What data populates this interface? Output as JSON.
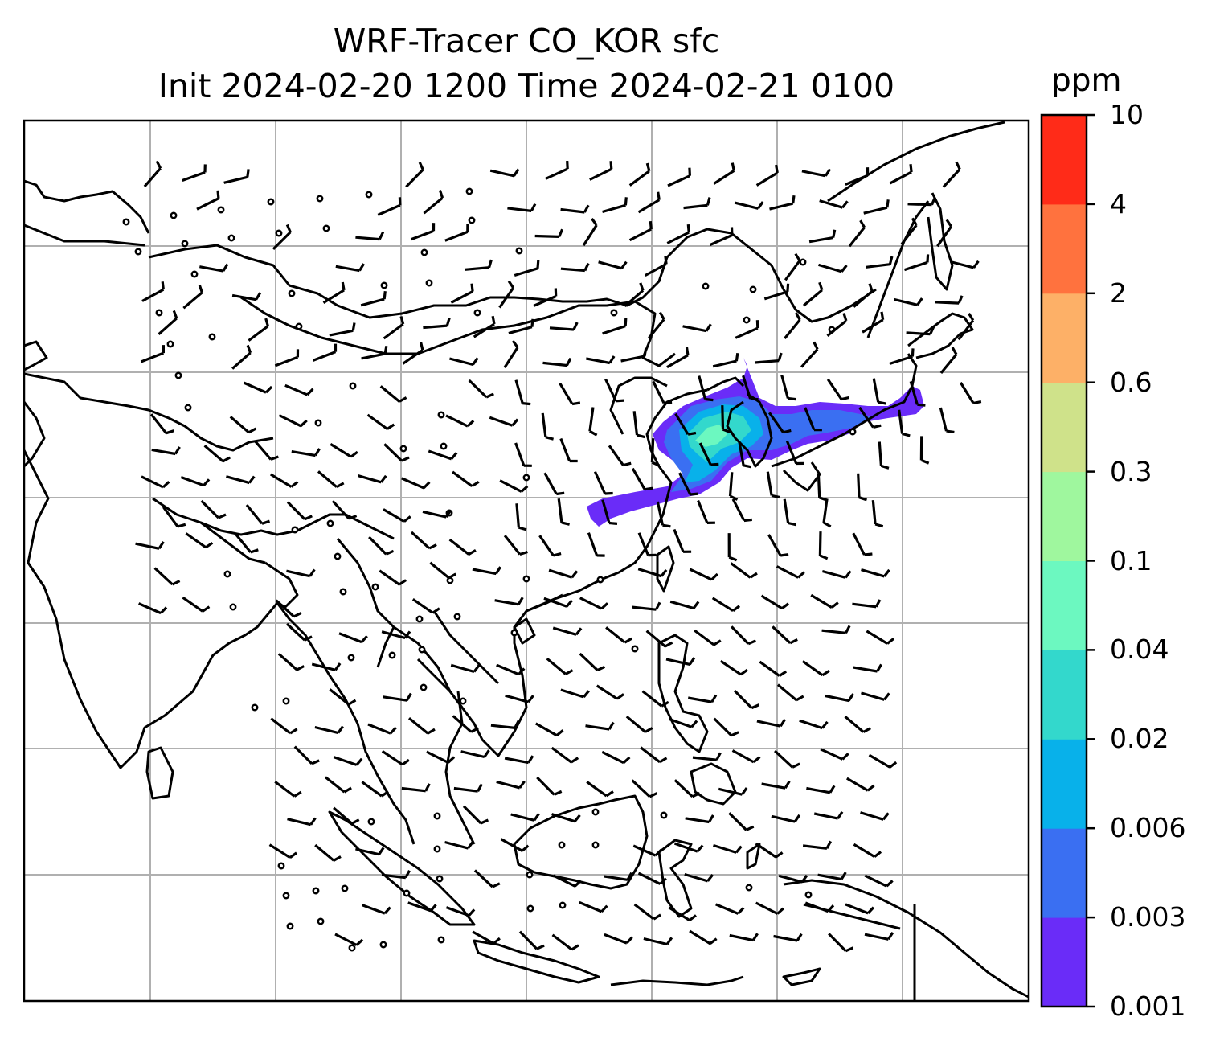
{
  "title": {
    "line1": "WRF-Tracer CO_KOR sfc",
    "line2": "Init 2024-02-20 1200 Time 2024-02-21 0100"
  },
  "colorbar": {
    "unit": "ppm",
    "levels": [
      "0.001",
      "0.003",
      "0.006",
      "0.02",
      "0.04",
      "0.1",
      "0.3",
      "0.6",
      "2",
      "4",
      "10"
    ],
    "colors": [
      "#6a2cf8",
      "#3a6ff2",
      "#08b1ea",
      "#33d8cc",
      "#6cf8c0",
      "#9ff79e",
      "#cfe28a",
      "#fdb067",
      "#ff723e",
      "#ff2b18"
    ]
  },
  "map": {
    "lines_color": "#000000",
    "grid_color": "#b0b0b0",
    "features": [
      "coastlines",
      "country-borders",
      "graticule",
      "wind-barbs",
      "tracer-plume"
    ]
  }
}
